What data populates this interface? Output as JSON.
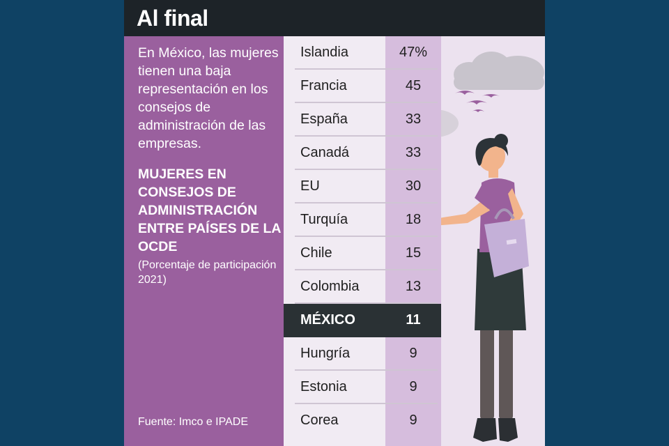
{
  "header": {
    "title": "Al final"
  },
  "left_panel": {
    "intro": "En México, las mujeres tienen una baja representación en los consejos de administración de las empresas.",
    "subtitle": "MUJERES EN CONSEJOS DE ADMINISTRACIÓN ENTRE PAÍSES DE LA OCDE",
    "note": "(Porcentaje de participación 2021)",
    "source": "Fuente: Imco e IPADE"
  },
  "table": {
    "rows": [
      {
        "country": "Islandia",
        "value": "47%"
      },
      {
        "country": "Francia",
        "value": "45"
      },
      {
        "country": "España",
        "value": "33"
      },
      {
        "country": "Canadá",
        "value": "33"
      },
      {
        "country": "EU",
        "value": "30"
      },
      {
        "country": "Turquía",
        "value": "18"
      },
      {
        "country": "Chile",
        "value": "15"
      },
      {
        "country": "Colombia",
        "value": "13"
      },
      {
        "country": "MÉXICO",
        "value": "11",
        "highlight": true
      },
      {
        "country": "Hungría",
        "value": "9"
      },
      {
        "country": "Estonia",
        "value": "9"
      },
      {
        "country": "Corea",
        "value": "9"
      }
    ]
  },
  "colors": {
    "background": "#0f4264",
    "title_bar": "#1d2328",
    "panel_purple": "#9a609e",
    "value_column": "#d6bddd",
    "highlight_row": "#2a3134"
  },
  "illustration": {
    "name": "woman-with-handbag-illustration"
  }
}
